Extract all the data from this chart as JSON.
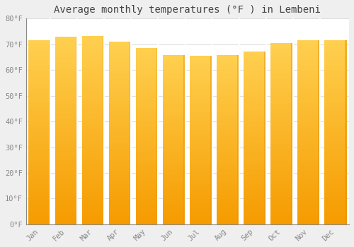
{
  "months": [
    "Jan",
    "Feb",
    "Mar",
    "Apr",
    "May",
    "Jun",
    "Jul",
    "Aug",
    "Sep",
    "Oct",
    "Nov",
    "Dec"
  ],
  "values": [
    71.6,
    73.0,
    73.2,
    70.9,
    68.5,
    65.8,
    65.5,
    65.7,
    67.3,
    70.5,
    71.6,
    71.6
  ],
  "bar_color_top": "#FEC23E",
  "bar_color_bottom": "#F59B00",
  "bar_color_right": "#E8940A",
  "title": "Average monthly temperatures (°F ) in Lembeni",
  "ylim": [
    0,
    80
  ],
  "ytick_step": 10,
  "background_color": "#EFEFEF",
  "plot_bg_color": "#FFFFFF",
  "grid_color": "#DDDDDD",
  "title_fontsize": 10,
  "tick_fontsize": 7.5,
  "tick_color": "#888888",
  "axis_color": "#888888",
  "font_family": "monospace",
  "bar_width": 0.82
}
